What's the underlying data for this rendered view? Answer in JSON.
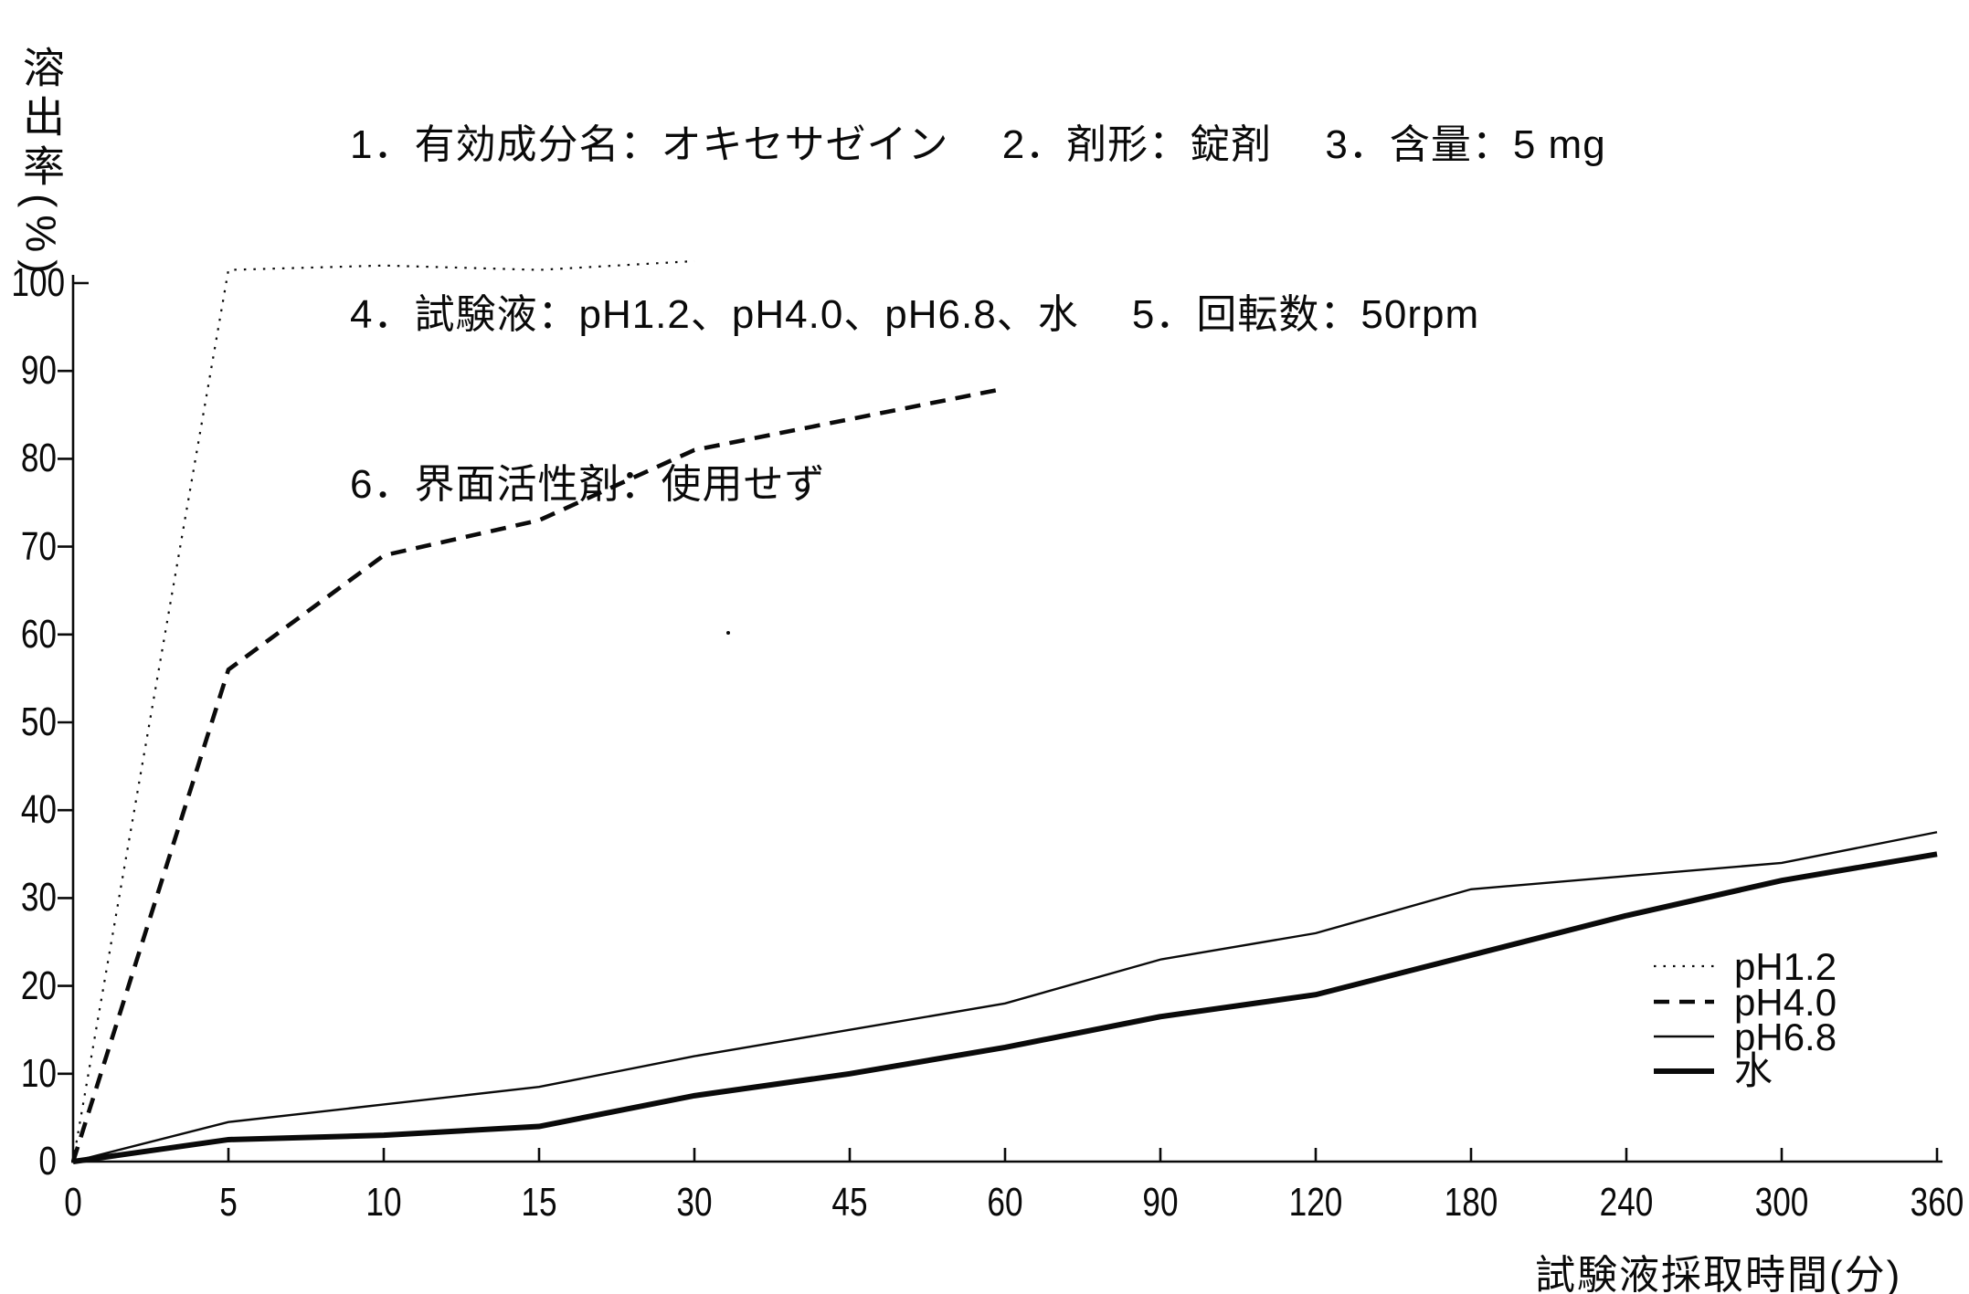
{
  "page": {
    "background": "#ffffff",
    "ink": "#0a0a0a"
  },
  "header": {
    "line1": "1．有効成分名：オキセサゼイン　 2．剤形：錠剤　 3．含量：5 mg",
    "line2": "4．試験液：pH1.2、pH4.0、pH6.8、水　 5．回転数：50rpm",
    "line3": "6．界面活性剤：使用せず"
  },
  "chart_data": {
    "type": "line",
    "title": "",
    "xlabel": "試験液採取時間(分)",
    "ylabel": "溶出率(%)",
    "categories": [
      0,
      5,
      10,
      15,
      30,
      45,
      60,
      90,
      120,
      180,
      240,
      300,
      360
    ],
    "x_axis_spacing": "equal-category-ticks",
    "y_ticks": [
      0,
      10,
      20,
      30,
      40,
      50,
      60,
      70,
      80,
      90,
      100
    ],
    "ylim": [
      0,
      103
    ],
    "grid": false,
    "legend_position": "right-middle",
    "series": [
      {
        "name": "pH1.2",
        "style": "dotted",
        "x": [
          0,
          5,
          10,
          15,
          30
        ],
        "values": [
          0,
          101.5,
          102,
          101.5,
          102.5
        ]
      },
      {
        "name": "pH4.0",
        "style": "dashed",
        "x": [
          0,
          5,
          10,
          15,
          30,
          45,
          60
        ],
        "values": [
          0,
          56,
          69,
          73,
          81,
          84.5,
          88
        ]
      },
      {
        "name": "pH6.8",
        "style": "solid-thin",
        "x": [
          0,
          5,
          10,
          15,
          30,
          45,
          60,
          90,
          120,
          180,
          240,
          300,
          360
        ],
        "values": [
          0,
          4.5,
          6.5,
          8.5,
          12,
          15,
          18,
          23,
          26,
          31,
          32.5,
          34,
          37.5
        ]
      },
      {
        "name": "水",
        "style": "solid-thick",
        "x": [
          0,
          5,
          10,
          15,
          30,
          45,
          60,
          90,
          120,
          180,
          240,
          300,
          360
        ],
        "values": [
          0,
          2.5,
          3,
          4,
          7.5,
          10,
          13,
          16.5,
          19,
          23.5,
          28,
          32,
          35
        ]
      }
    ]
  }
}
